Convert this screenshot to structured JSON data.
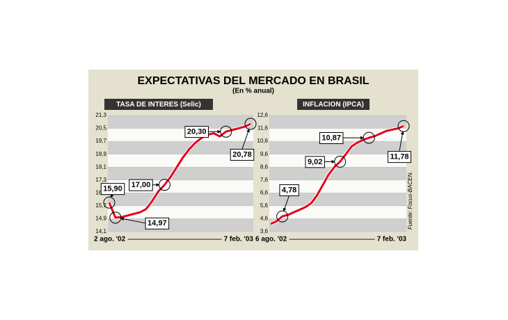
{
  "title": "EXPECTATIVAS DEL MERCADO EN BRASIL",
  "subtitle": "(En % anual)",
  "source": "Fuente: Focus-BACEN.",
  "chart_data": [
    {
      "type": "line",
      "title": "TASA DE INTERES (Selic)",
      "color": "#e2001a",
      "categories": [
        "2 ago. '02",
        null,
        null,
        null,
        null,
        null,
        null,
        null,
        null,
        null,
        null,
        null,
        null,
        null,
        null,
        null,
        null,
        null,
        null,
        null,
        null,
        null,
        null,
        "7 feb. '03"
      ],
      "values": [
        15.9,
        14.97,
        15.0,
        15.1,
        15.2,
        15.3,
        15.5,
        16.0,
        16.6,
        17.0,
        17.5,
        18.1,
        18.7,
        19.2,
        19.6,
        19.9,
        20.1,
        20.2,
        20.0,
        20.3,
        20.4,
        20.5,
        20.6,
        20.78
      ],
      "value_labels": [
        "15,90",
        "14,97",
        null,
        null,
        null,
        null,
        null,
        null,
        null,
        "17,00",
        null,
        null,
        null,
        null,
        null,
        null,
        null,
        null,
        null,
        "20,30",
        null,
        null,
        null,
        "20,78"
      ],
      "ylim": [
        14.1,
        21.3
      ],
      "yticks": [
        {
          "value": 14.1,
          "label": "14,1"
        },
        {
          "value": 14.9,
          "label": "14,9"
        },
        {
          "value": 15.7,
          "label": "15,7"
        },
        {
          "value": 16.5,
          "label": "16,5"
        },
        {
          "value": 17.3,
          "label": "17,3"
        },
        {
          "value": 18.1,
          "label": "18,1"
        },
        {
          "value": 18.9,
          "label": "18,9"
        },
        {
          "value": 19.7,
          "label": "19,7"
        },
        {
          "value": 20.5,
          "label": "20,5"
        },
        {
          "value": 21.3,
          "label": "21,3"
        }
      ],
      "grid": true
    },
    {
      "type": "line",
      "title": "INFLACION (IPCA)",
      "color": "#e2001a",
      "categories": [
        "6 ago. '02",
        null,
        null,
        null,
        null,
        null,
        null,
        null,
        null,
        null,
        null,
        null,
        null,
        null,
        null,
        null,
        null,
        null,
        null,
        null,
        null,
        null,
        null,
        "7 feb. '03"
      ],
      "values": [
        4.2,
        4.4,
        4.78,
        4.9,
        5.1,
        5.3,
        5.5,
        5.8,
        6.4,
        7.2,
        8.0,
        8.6,
        9.02,
        9.6,
        10.2,
        10.5,
        10.7,
        10.87,
        11.0,
        11.2,
        11.4,
        11.5,
        11.6,
        11.78
      ],
      "value_labels": [
        null,
        null,
        "4,78",
        null,
        null,
        null,
        null,
        null,
        null,
        null,
        null,
        null,
        "9,02",
        null,
        null,
        null,
        null,
        "10,87",
        null,
        null,
        null,
        null,
        null,
        "11,78"
      ],
      "ylim": [
        3.6,
        12.6
      ],
      "yticks": [
        {
          "value": 3.6,
          "label": "3,6"
        },
        {
          "value": 4.6,
          "label": "4,6"
        },
        {
          "value": 5.6,
          "label": "5,6"
        },
        {
          "value": 6.6,
          "label": "6,6"
        },
        {
          "value": 7.6,
          "label": "7,6"
        },
        {
          "value": 8.6,
          "label": "8,6"
        },
        {
          "value": 9.6,
          "label": "9,6"
        },
        {
          "value": 10.6,
          "label": "10,6"
        },
        {
          "value": 11.6,
          "label": "11,6"
        },
        {
          "value": 12.6,
          "label": "12,6"
        }
      ],
      "grid": true
    }
  ]
}
